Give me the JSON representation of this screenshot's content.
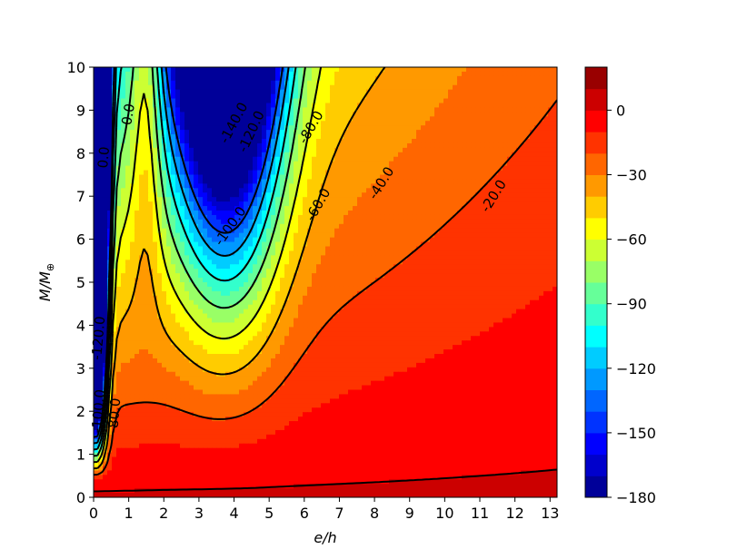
{
  "chart_data": {
    "type": "heatmap",
    "subtype": "filled-contour",
    "title": "",
    "xlabel": "e/h",
    "ylabel_main": "M/M",
    "ylabel_sub": "⊕",
    "xlim": [
      0,
      13.2
    ],
    "ylim": [
      0,
      10
    ],
    "x_ticks": [
      "0",
      "1",
      "2",
      "3",
      "4",
      "5",
      "6",
      "7",
      "8",
      "9",
      "10",
      "11",
      "12",
      "13"
    ],
    "y_ticks": [
      "0",
      "1",
      "2",
      "3",
      "4",
      "5",
      "6",
      "7",
      "8",
      "9",
      "10"
    ],
    "colorbar": {
      "colormap": "jet",
      "min": -180,
      "max": 20,
      "level_step": 10,
      "ticks": [
        "0",
        "−30",
        "−60",
        "−90",
        "−120",
        "−150",
        "−180"
      ]
    },
    "contour_lines": [
      {
        "level": 0,
        "style": "solid",
        "labels": [
          "0.0",
          "0.0"
        ]
      },
      {
        "level": -20,
        "style": "dashed",
        "labels": [
          "-20.0",
          "-20.0"
        ]
      },
      {
        "level": -40,
        "style": "dashed",
        "labels": [
          "-40.0"
        ]
      },
      {
        "level": -60,
        "style": "dashed",
        "labels": [
          "-60.0"
        ]
      },
      {
        "level": -80,
        "style": "dashed",
        "labels": [
          "-80.0",
          "-80.0"
        ]
      },
      {
        "level": -100,
        "style": "dashed",
        "labels": [
          "-100.0",
          "-100.0"
        ]
      },
      {
        "level": -120,
        "style": "dashed",
        "labels": [
          "-120.0",
          "-120.0"
        ]
      },
      {
        "level": -140,
        "style": "dashed",
        "labels": [
          "-140.0"
        ]
      }
    ]
  }
}
